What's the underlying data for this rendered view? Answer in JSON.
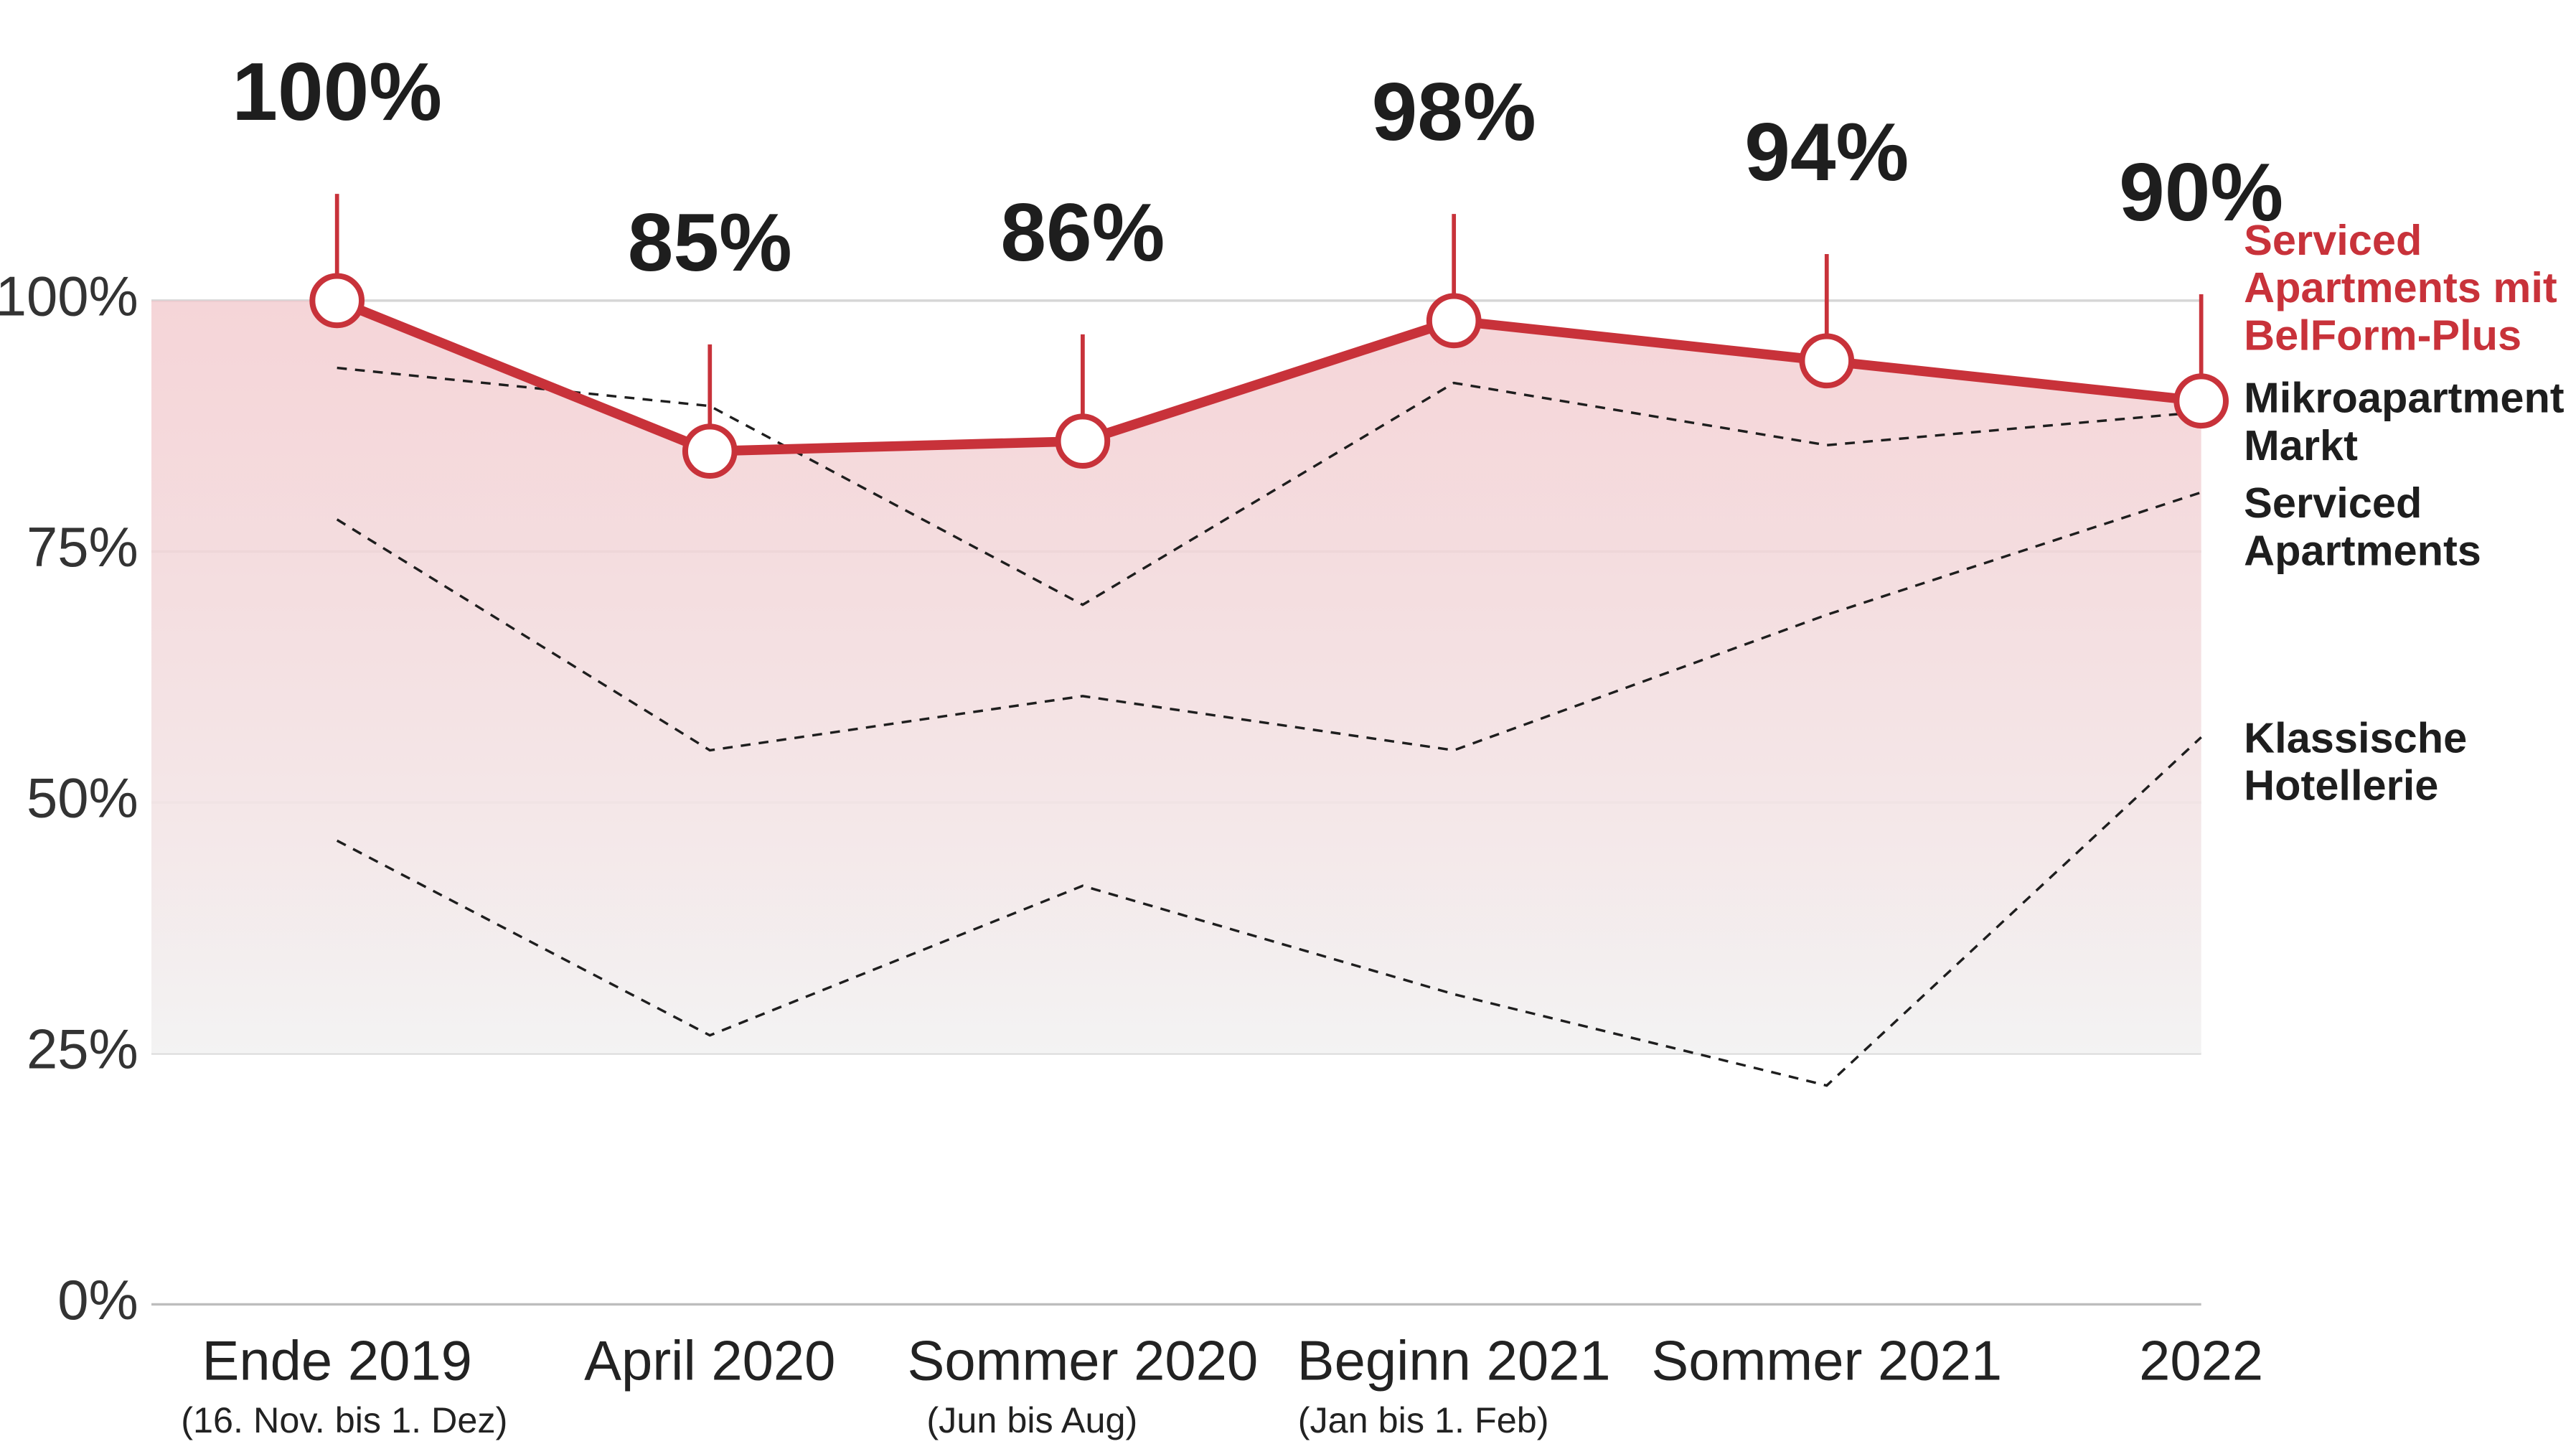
{
  "chart_data": {
    "type": "line",
    "categories": [
      "Ende 2019",
      "April 2020",
      "Sommer 2020",
      "Beginn 2021",
      "Sommer 2021",
      "2022"
    ],
    "category_notes": [
      "(16. Nov. bis 1. Dez)",
      null,
      "(Jun bis Aug)",
      "(Jan bis 1. Feb)",
      null,
      null
    ],
    "ylim": [
      0,
      100
    ],
    "yticks": [
      {
        "value": 0,
        "label": "0%"
      },
      {
        "value": 25,
        "label": "25%"
      },
      {
        "value": 50,
        "label": "50%"
      },
      {
        "value": 75,
        "label": "75%"
      },
      {
        "value": 100,
        "label": "100%"
      }
    ],
    "grid": true,
    "series": [
      {
        "name": "Serviced Apartments mit BelForm-Plus",
        "color": "#c8323a",
        "style": "solid",
        "values": [
          100,
          85,
          86,
          98,
          94,
          90
        ],
        "value_labels": [
          "100%",
          "85%",
          "86%",
          "98%",
          "94%",
          "90%"
        ]
      },
      {
        "name": "Mikroapartment Markt",
        "color": "#1e1e1e",
        "style": "dashed",
        "values": [
          93.3,
          89.5,
          69.7,
          91.8,
          85.6,
          88.9
        ]
      },
      {
        "name": "Serviced Apartments",
        "color": "#1e1e1e",
        "style": "dashed",
        "values": [
          78.2,
          55.2,
          60.6,
          55.2,
          68.7,
          80.9
        ]
      },
      {
        "name": "Klassische Hotellerie",
        "color": "#1e1e1e",
        "style": "dashed",
        "values": [
          46.2,
          26.8,
          41.7,
          30.9,
          21.8,
          56.5
        ]
      }
    ]
  }
}
